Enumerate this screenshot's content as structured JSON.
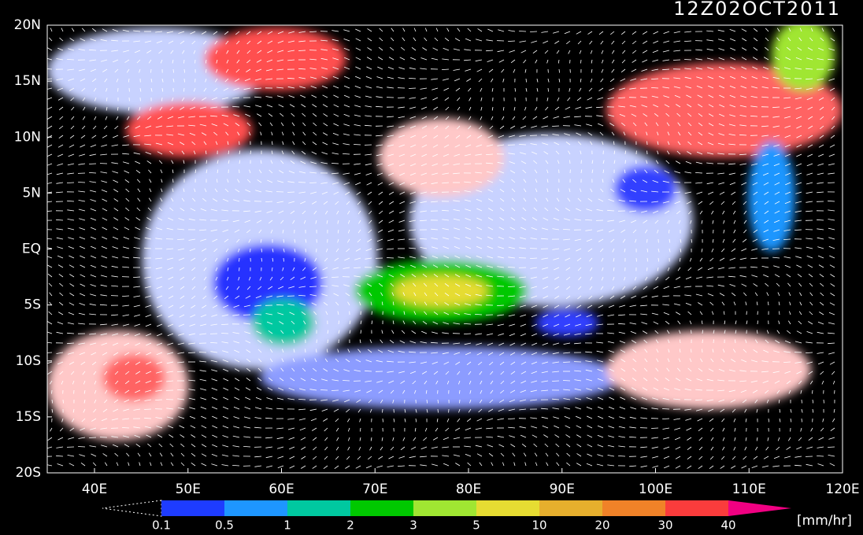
{
  "title": "12Z02OCT2011",
  "map": {
    "lat_labels": [
      "20N",
      "15N",
      "10N",
      "5N",
      "EQ",
      "5S",
      "10S",
      "15S",
      "20S"
    ],
    "lon_labels": [
      "40E",
      "50E",
      "60E",
      "70E",
      "80E",
      "90E",
      "100E",
      "110E",
      "120E"
    ]
  },
  "colorbar": {
    "labels": [
      "0.1",
      "0.5",
      "1",
      "2",
      "3",
      "5",
      "10",
      "20",
      "30",
      "40"
    ],
    "colors": [
      "#1e3cff",
      "#1e96ff",
      "#00c8a0",
      "#00c800",
      "#a0e632",
      "#e6dc32",
      "#e6af2d",
      "#f08228",
      "#fa3c3c"
    ],
    "over_color": "#f00082",
    "unit": "[mm/hr]"
  }
}
